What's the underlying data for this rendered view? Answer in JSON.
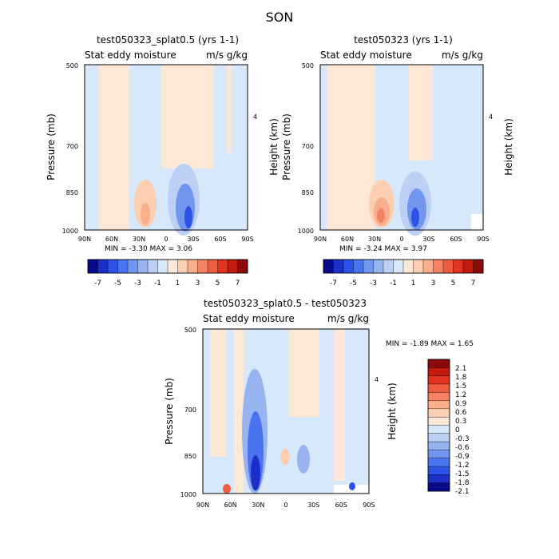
{
  "figure": {
    "title": "SON"
  },
  "colors": {
    "blues": [
      "#08088a",
      "#1c2fc8",
      "#2e52e8",
      "#4a73ef",
      "#7196ee",
      "#97b3f0",
      "#bcd0f5",
      "#d8e8fb"
    ],
    "reds": [
      "#fde8d8",
      "#fccfb3",
      "#f9ae8c",
      "#f58363",
      "#ee5c3e",
      "#e1331e",
      "#c21a0f",
      "#8c0a0a"
    ]
  },
  "chart_data": [
    {
      "type": "heatmap",
      "title": "test050323_splat0.5 (yrs 1-1)",
      "subtitle_left": "Stat eddy moisture",
      "subtitle_right": "m/s g/kg",
      "ylabel": "Pressure (mb)",
      "ylabel_right": "Height (km)",
      "x_ticks": [
        "90N",
        "60N",
        "30N",
        "0",
        "30S",
        "60S",
        "90S"
      ],
      "y_ticks": [
        "500",
        "700",
        "850",
        "1000"
      ],
      "y_ticks_right": [
        "4"
      ],
      "min_max": "MIN = -3.30 MAX = 3.06",
      "colorbar_labels": [
        "-7",
        "-5",
        "-3",
        "-1",
        "1",
        "3",
        "5",
        "7"
      ]
    },
    {
      "type": "heatmap",
      "title": "test050323 (yrs 1-1)",
      "subtitle_left": "Stat eddy moisture",
      "subtitle_right": "m/s g/kg",
      "ylabel": "Pressure (mb)",
      "ylabel_right": "Height (km)",
      "x_ticks": [
        "90N",
        "60N",
        "30N",
        "0",
        "30S",
        "60S",
        "90S"
      ],
      "y_ticks": [
        "500",
        "700",
        "850",
        "1000"
      ],
      "y_ticks_right": [
        "4"
      ],
      "min_max": "MIN = -3.24 MAX = 3.97",
      "colorbar_labels": [
        "-7",
        "-5",
        "-3",
        "-1",
        "1",
        "3",
        "5",
        "7"
      ]
    },
    {
      "type": "heatmap",
      "title": "test050323_splat0.5 - test050323",
      "subtitle_left": "Stat eddy moisture",
      "subtitle_right": "m/s g/kg",
      "ylabel": "Pressure (mb)",
      "ylabel_right": "Height (km)",
      "x_ticks": [
        "90N",
        "60N",
        "30N",
        "0",
        "30S",
        "60S",
        "90S"
      ],
      "y_ticks": [
        "500",
        "700",
        "850",
        "1000"
      ],
      "y_ticks_right": [
        "4"
      ],
      "min_max": "MIN = -1.89 MAX = 1.65",
      "colorbar_labels": [
        "2.1",
        "1.8",
        "1.5",
        "1.2",
        "0.9",
        "0.6",
        "0.3",
        "0",
        "-0.3",
        "-0.6",
        "-0.9",
        "-1.2",
        "-1.5",
        "-1.8",
        "-2.1"
      ]
    }
  ]
}
